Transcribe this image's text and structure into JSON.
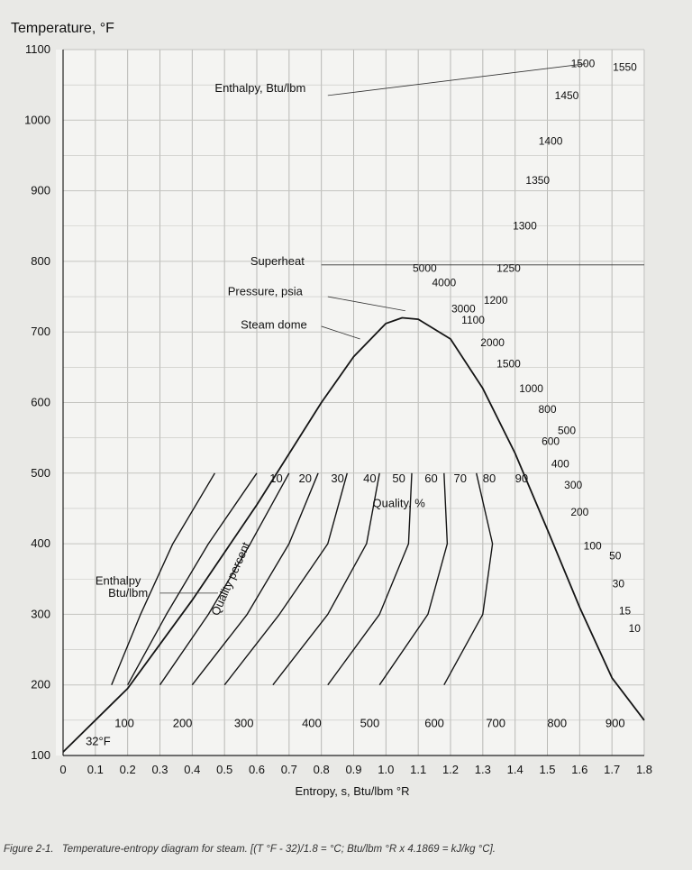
{
  "chart_data": {
    "type": "line",
    "ylabel": "Temperature, °F",
    "xlabel": "Entropy, s, Btu/lbm °R",
    "xlim": [
      0,
      1.8
    ],
    "ylim": [
      100,
      1100
    ],
    "x_ticks": [
      "0",
      "0.1",
      "0.2",
      "0.3",
      "0.4",
      "0.5",
      "0.6",
      "0.7",
      "0.8",
      "0.9",
      "1.0",
      "1.1",
      "1.2",
      "1.3",
      "1.4",
      "1.5",
      "1.6",
      "1.7",
      "1.8"
    ],
    "y_ticks": [
      "100",
      "200",
      "300",
      "400",
      "500",
      "600",
      "700",
      "800",
      "900",
      "1000",
      "1100"
    ],
    "grid": true,
    "callouts": {
      "enthalpy_top": "Enthalpy, Btu/lbm",
      "superheat": "Superheat",
      "pressure": "Pressure, psia",
      "steam_dome": "Steam dome",
      "quality_pct": "Quality, %",
      "quality_percent": "Quality percent",
      "enthalpy_left_1": "Enthalpy",
      "enthalpy_left_2": "Btu/lbm",
      "freezing": "32°F"
    },
    "steam_dome": {
      "x": [
        0.0,
        0.2,
        0.4,
        0.6,
        0.8,
        0.9,
        1.0,
        1.05,
        1.1,
        1.2,
        1.3,
        1.4,
        1.5,
        1.6,
        1.7,
        1.8
      ],
      "y": [
        105,
        195,
        320,
        455,
        600,
        665,
        712,
        720,
        718,
        690,
        620,
        528,
        420,
        310,
        210,
        150
      ]
    },
    "quality_lines": [
      {
        "label": "10",
        "x": [
          0.15,
          0.24,
          0.34,
          0.47
        ],
        "y": [
          200,
          300,
          400,
          500
        ]
      },
      {
        "label": "20",
        "x": [
          0.2,
          0.32,
          0.45,
          0.6
        ],
        "y": [
          200,
          300,
          400,
          500
        ]
      },
      {
        "label": "30",
        "x": [
          0.3,
          0.45,
          0.58,
          0.7
        ],
        "y": [
          200,
          300,
          400,
          500
        ]
      },
      {
        "label": "40",
        "x": [
          0.4,
          0.57,
          0.7,
          0.79
        ],
        "y": [
          200,
          300,
          400,
          500
        ]
      },
      {
        "label": "50",
        "x": [
          0.5,
          0.67,
          0.82,
          0.88
        ],
        "y": [
          200,
          300,
          400,
          500
        ]
      },
      {
        "label": "60",
        "x": [
          0.65,
          0.82,
          0.94,
          0.98
        ],
        "y": [
          200,
          300,
          400,
          500
        ]
      },
      {
        "label": "70",
        "x": [
          0.82,
          0.98,
          1.07,
          1.08
        ],
        "y": [
          200,
          300,
          400,
          500
        ]
      },
      {
        "label": "80",
        "x": [
          0.98,
          1.13,
          1.19,
          1.18
        ],
        "y": [
          200,
          300,
          400,
          500
        ]
      },
      {
        "label": "90",
        "x": [
          1.18,
          1.3,
          1.33,
          1.28
        ],
        "y": [
          200,
          300,
          400,
          500
        ]
      }
    ],
    "quality_labels": [
      {
        "label": "10",
        "x": 0.66,
        "y": 487
      },
      {
        "label": "20",
        "x": 0.75,
        "y": 487
      },
      {
        "label": "30",
        "x": 0.85,
        "y": 487
      },
      {
        "label": "40",
        "x": 0.95,
        "y": 487
      },
      {
        "label": "50",
        "x": 1.04,
        "y": 487
      },
      {
        "label": "60",
        "x": 1.14,
        "y": 487
      },
      {
        "label": "70",
        "x": 1.23,
        "y": 487
      },
      {
        "label": "80",
        "x": 1.32,
        "y": 487
      },
      {
        "label": "90",
        "x": 1.42,
        "y": 487
      }
    ],
    "enthalpy_bottom_labels": [
      {
        "label": "100",
        "x": 0.19,
        "y": 140
      },
      {
        "label": "200",
        "x": 0.37,
        "y": 140
      },
      {
        "label": "300",
        "x": 0.56,
        "y": 140
      },
      {
        "label": "400",
        "x": 0.77,
        "y": 140
      },
      {
        "label": "500",
        "x": 0.95,
        "y": 140
      },
      {
        "label": "600",
        "x": 1.15,
        "y": 140
      },
      {
        "label": "700",
        "x": 1.34,
        "y": 140
      },
      {
        "label": "800",
        "x": 1.53,
        "y": 140
      },
      {
        "label": "900",
        "x": 1.71,
        "y": 140
      }
    ],
    "enthalpy_top_labels": [
      {
        "label": "1100",
        "x": 1.27,
        "y": 712
      },
      {
        "label": "1200",
        "x": 1.34,
        "y": 740
      },
      {
        "label": "1250",
        "x": 1.38,
        "y": 785
      },
      {
        "label": "1300",
        "x": 1.43,
        "y": 845
      },
      {
        "label": "1350",
        "x": 1.47,
        "y": 910
      },
      {
        "label": "1400",
        "x": 1.51,
        "y": 965
      },
      {
        "label": "1450",
        "x": 1.56,
        "y": 1030
      },
      {
        "label": "1500",
        "x": 1.61,
        "y": 1075
      },
      {
        "label": "1550",
        "x": 1.74,
        "y": 1070
      }
    ],
    "pressure_labels": [
      {
        "label": "5000",
        "x": 1.12,
        "y": 785
      },
      {
        "label": "4000",
        "x": 1.18,
        "y": 765
      },
      {
        "label": "3000",
        "x": 1.24,
        "y": 728
      },
      {
        "label": "2000",
        "x": 1.33,
        "y": 680
      },
      {
        "label": "1500",
        "x": 1.38,
        "y": 650
      },
      {
        "label": "1000",
        "x": 1.45,
        "y": 615
      },
      {
        "label": "800",
        "x": 1.5,
        "y": 585
      },
      {
        "label": "600",
        "x": 1.51,
        "y": 540
      },
      {
        "label": "500",
        "x": 1.56,
        "y": 555
      },
      {
        "label": "400",
        "x": 1.54,
        "y": 508
      },
      {
        "label": "300",
        "x": 1.58,
        "y": 478
      },
      {
        "label": "200",
        "x": 1.6,
        "y": 440
      },
      {
        "label": "100",
        "x": 1.64,
        "y": 392
      },
      {
        "label": "50",
        "x": 1.71,
        "y": 378
      },
      {
        "label": "30",
        "x": 1.72,
        "y": 338
      },
      {
        "label": "15",
        "x": 1.74,
        "y": 300
      },
      {
        "label": "10",
        "x": 1.77,
        "y": 275
      }
    ]
  },
  "figure_caption": {
    "number": "Figure 2-1.",
    "text": "Temperature-entropy diagram for steam.  [(T °F - 32)/1.8 = °C; Btu/lbm °R x 4.1869 = kJ/kg °C]."
  }
}
